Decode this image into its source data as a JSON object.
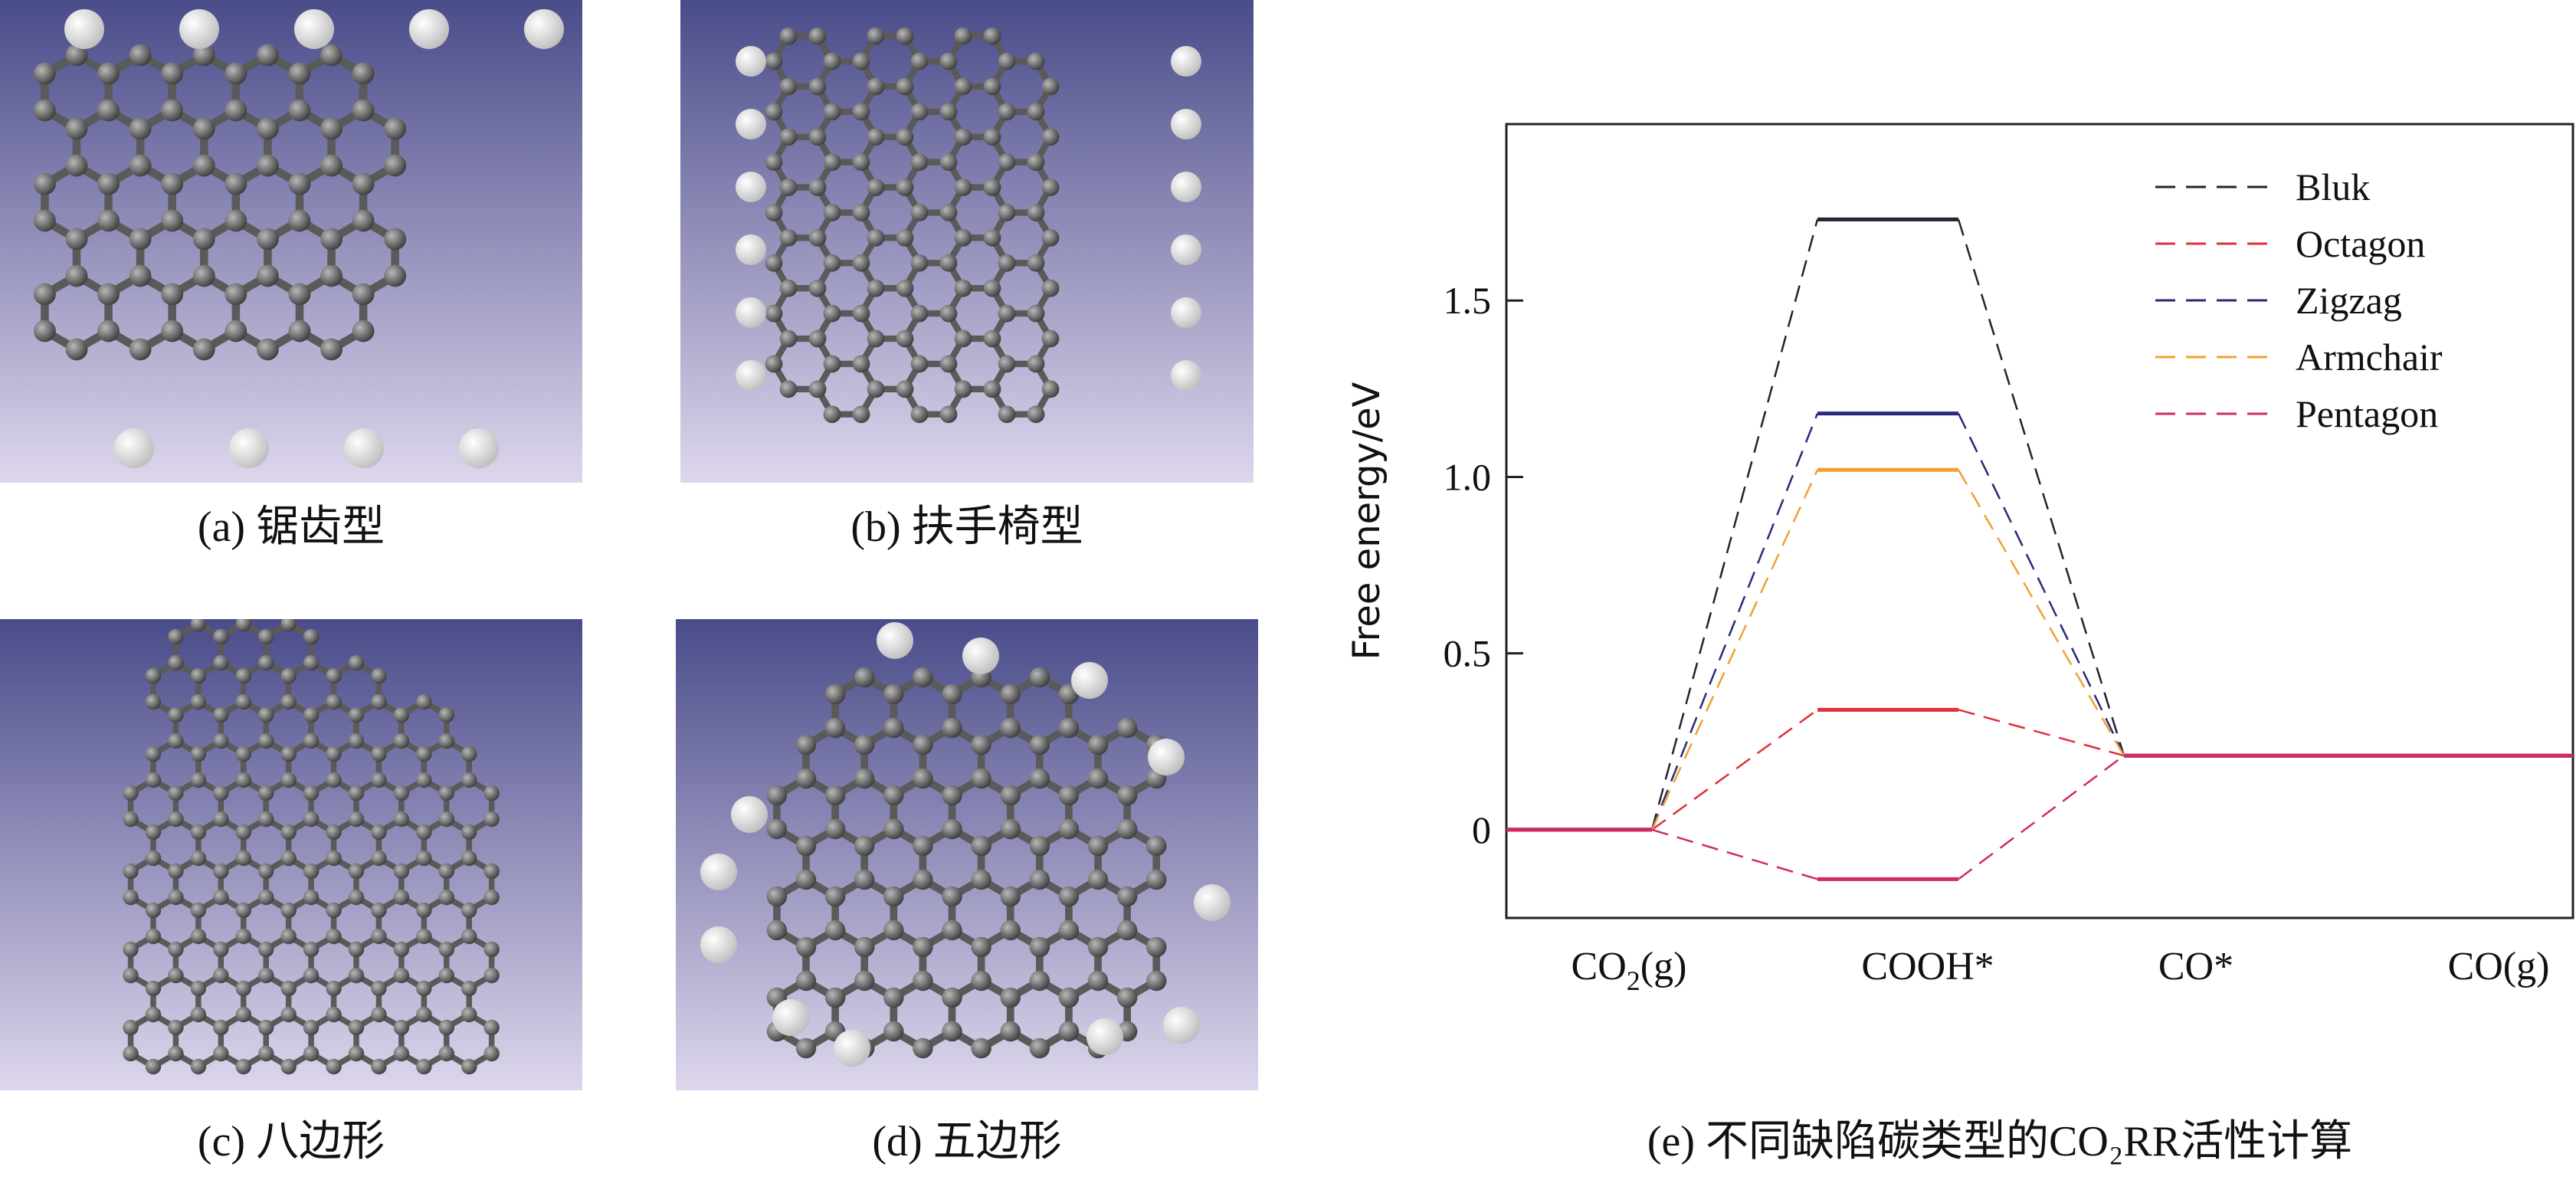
{
  "panels": [
    {
      "id": "a",
      "caption": "(a) 锯齿型",
      "structure": "zigzag-graphene-nanoribbon"
    },
    {
      "id": "b",
      "caption": "(b) 扶手椅型",
      "structure": "armchair-graphene-nanoribbon"
    },
    {
      "id": "c",
      "caption": "(c) 八边形",
      "structure": "octagon-defect-graphene"
    },
    {
      "id": "d",
      "caption": "(d)  五边形",
      "structure": "pentagon-defect-graphene"
    }
  ],
  "colors": {
    "bg_top": "#4a4c8a",
    "bg_bottom": "#ddd6ec",
    "carbon": "#6e6e6e",
    "hydrogen": "#f2f2f2"
  },
  "chart_caption": "(e) 不同缺陷碳类型的CO₂RR活性计算",
  "chart_data": {
    "type": "line",
    "subtype": "free-energy-diagram",
    "categories": [
      "CO₂(g)",
      "COOH*",
      "CO*",
      "CO(g)"
    ],
    "ylabel": "Free energy/eV",
    "xlabel": "",
    "ylim": [
      -0.25,
      2.0
    ],
    "yticks": [
      0,
      0.5,
      1.0,
      1.5
    ],
    "ytick_labels": [
      "0",
      "0.5",
      "1.0",
      "1.5"
    ],
    "legend_position": "top-right",
    "series": [
      {
        "name": "Bluk",
        "color": "#222233",
        "values": [
          0,
          1.73,
          0.21,
          0.21
        ]
      },
      {
        "name": "Octagon",
        "color": "#e0303a",
        "values": [
          0,
          0.34,
          0.21,
          0.21
        ]
      },
      {
        "name": "Zigzag",
        "color": "#2a2a7a",
        "values": [
          0,
          1.18,
          0.21,
          0.21
        ]
      },
      {
        "name": "Armchair",
        "color": "#f0a030",
        "values": [
          0,
          1.02,
          0.21,
          0.21
        ]
      },
      {
        "name": "Pentagon",
        "color": "#d02a6a",
        "values": [
          0,
          -0.14,
          0.21,
          0.21
        ]
      }
    ]
  }
}
